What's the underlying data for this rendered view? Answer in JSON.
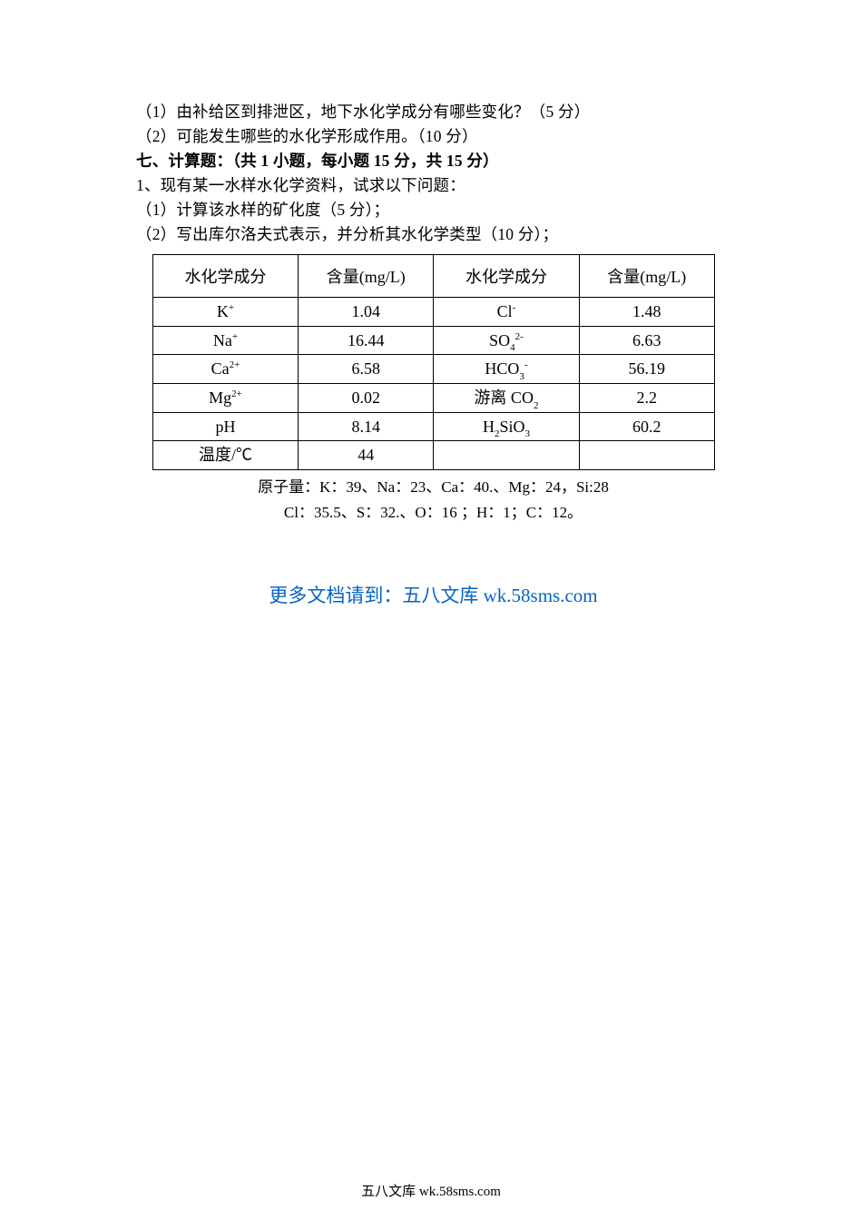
{
  "questions": {
    "q1": "（1）由补给区到排泄区，地下水化学成分有哪些变化？（5 分）",
    "q2": "（2）可能发生哪些的水化学形成作用。（10 分）",
    "section7": "七、计算题：（共 1 小题，每小题 15 分，共 15 分）",
    "q3_intro": "1、现有某一水样水化学资料，试求以下问题：",
    "q3_1": "（1）计算该水样的矿化度（5 分）；",
    "q3_2": "（2）写出库尔洛夫式表示，并分析其水化学类型（10 分）；"
  },
  "table": {
    "columns": [
      "水化学成分",
      "含量(mg/L)",
      "水化学成分",
      "含量(mg/L)"
    ],
    "col_widths": [
      "26%",
      "24%",
      "26%",
      "24%"
    ],
    "rows": [
      {
        "c1_html": "K<sup>+</sup>",
        "c2": "1.04",
        "c3_html": "Cl<sup>-</sup>",
        "c4": "1.48"
      },
      {
        "c1_html": "Na<sup>+</sup>",
        "c2": "16.44",
        "c3_html": "SO<sub>4</sub><sup>2-</sup>",
        "c4": "6.63"
      },
      {
        "c1_html": "Ca<sup>2+</sup>",
        "c2": "6.58",
        "c3_html": "HCO<sub>3</sub><sup>-</sup>",
        "c4": "56.19"
      },
      {
        "c1_html": "Mg<sup>2+</sup>",
        "c2": "0.02",
        "c3_html": "游离 CO<sub>2</sub>",
        "c4": "2.2"
      },
      {
        "c1_html": "pH",
        "c2": "8.14",
        "c3_html": "H<sub>2</sub>SiO<sub>3</sub>",
        "c4": "60.2"
      },
      {
        "c1_html": "温度/℃",
        "c2": "44",
        "c3_html": "",
        "c4": ""
      }
    ],
    "border_color": "#000000",
    "header_fontsize": 18,
    "cell_fontsize": 18
  },
  "atomic": {
    "line1": "原子量：K：39、Na：23、Ca：40.、Mg：24，Si:28",
    "line2": "Cl：35.5、S：32.、O：16 ；H：1；C：12。"
  },
  "link": {
    "prefix": "更多文档请到：",
    "label": "五八文库 wk.58sms.com",
    "color": "#0563c1"
  },
  "footer": "五八文库 wk.58sms.com",
  "colors": {
    "text": "#000000",
    "background": "#ffffff",
    "link": "#0563c1"
  }
}
